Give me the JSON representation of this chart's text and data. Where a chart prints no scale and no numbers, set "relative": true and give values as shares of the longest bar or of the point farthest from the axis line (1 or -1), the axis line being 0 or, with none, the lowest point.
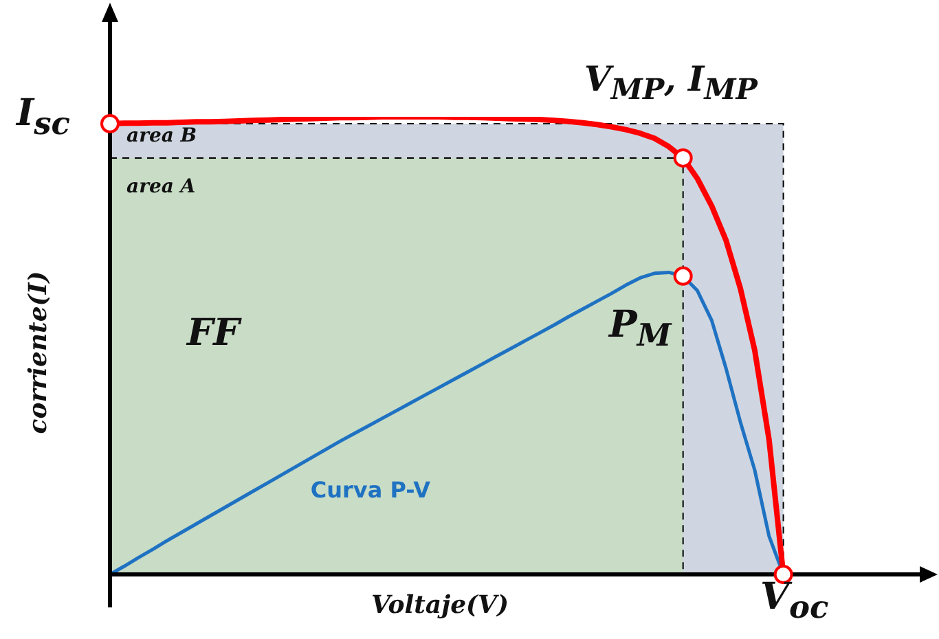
{
  "chart_data": {
    "type": "line",
    "relative": true,
    "xlabel": "Voltaje(V)",
    "ylabel": "corriente(I)",
    "line_style": "solid",
    "categories": [
      null,
      null,
      null,
      null,
      null,
      null,
      null,
      null,
      null,
      null,
      null,
      null,
      null,
      null,
      null,
      null,
      null,
      null,
      null,
      null,
      null,
      null,
      null,
      null,
      null,
      null,
      null,
      null,
      null,
      null,
      null,
      null,
      null,
      null,
      null,
      null,
      null,
      null,
      null,
      null,
      null,
      null,
      null,
      null,
      null,
      null,
      null,
      null,
      null,
      null,
      null,
      null,
      null,
      null,
      null,
      null,
      null,
      null
    ],
    "series": [
      {
        "name": "Curva P-V",
        "color": "#1f72c2",
        "values": [
          0,
          0.018,
          0.037,
          0.055,
          0.074,
          0.092,
          0.11,
          0.128,
          0.146,
          0.164,
          0.182,
          0.2,
          0.218,
          0.236,
          0.254,
          0.272,
          0.29,
          0.307,
          0.324,
          0.341,
          0.358,
          0.375,
          0.392,
          0.409,
          0.426,
          0.443,
          0.46,
          0.477,
          0.494,
          0.511,
          0.528,
          0.545,
          0.563,
          0.58,
          0.597,
          0.614,
          0.632,
          0.648,
          0.658,
          0.66,
          0.652,
          0.62,
          0.555,
          0.45,
          0.333,
          0.228,
          0.084,
          0,
          null,
          null,
          null,
          null,
          null,
          null,
          null,
          null,
          null,
          null
        ]
      },
      {
        "color": "#ff0000",
        "values": [
          0.985,
          0.986,
          0.986,
          0.987,
          0.987,
          0.988,
          0.989,
          0.989,
          0.99,
          0.991,
          0.992,
          0.993,
          0.994,
          0.995,
          0.996,
          0.997,
          0.998,
          0.998,
          0.999,
          1,
          1,
          1,
          1,
          1,
          0.999,
          0.999,
          0.998,
          0.997,
          0.996,
          0.995,
          0.994,
          0.992,
          0.99,
          0.987,
          0.983,
          0.978,
          0.972,
          0.964,
          0.953,
          0.935,
          0.91,
          0.865,
          0.805,
          0.73,
          0.625,
          0.49,
          0.295,
          0,
          null,
          null,
          null,
          null,
          null,
          null,
          null,
          null,
          null,
          null
        ]
      }
    ],
    "annotations": [
      "I$_{sc}$",
      "V$_{MP}$, I$_{MP}$",
      "area B",
      "area A",
      "FF",
      "P$_{M}$",
      "V$_{oc}$"
    ]
  }
}
